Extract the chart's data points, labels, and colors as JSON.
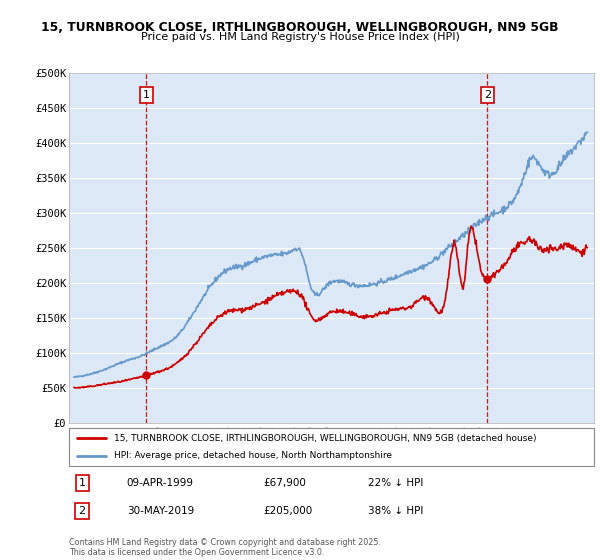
{
  "title1": "15, TURNBROOK CLOSE, IRTHLINGBOROUGH, WELLINGBOROUGH, NN9 5GB",
  "title2": "Price paid vs. HM Land Registry's House Price Index (HPI)",
  "legend_label1": "15, TURNBROOK CLOSE, IRTHLINGBOROUGH, WELLINGBOROUGH, NN9 5GB (detached house)",
  "legend_label2": "HPI: Average price, detached house, North Northamptonshire",
  "annotation1_date": "09-APR-1999",
  "annotation1_price": "£67,900",
  "annotation1_pct": "22% ↓ HPI",
  "annotation2_date": "30-MAY-2019",
  "annotation2_price": "£205,000",
  "annotation2_pct": "38% ↓ HPI",
  "footer": "Contains HM Land Registry data © Crown copyright and database right 2025.\nThis data is licensed under the Open Government Licence v3.0.",
  "vline1_x": 1999.27,
  "vline2_x": 2019.41,
  "sale1_y": 67900,
  "sale2_y": 205000,
  "ylim": [
    0,
    500000
  ],
  "xlim_start": 1994.7,
  "xlim_end": 2025.7,
  "line1_color": "#cc0000",
  "line2_color": "#6699cc",
  "vline_color": "#cc0000",
  "background_color": "#ffffff",
  "chart_bg_color": "#dce8f5",
  "grid_color": "#ffffff"
}
